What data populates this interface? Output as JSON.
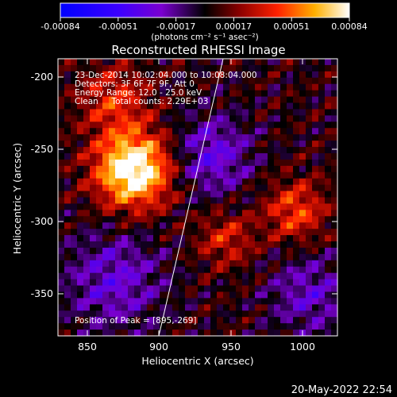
{
  "colorbar": {
    "ticks": [
      "-0.00084",
      "-0.00051",
      "-0.00017",
      "0.00017",
      "0.00051",
      "0.00084"
    ],
    "units": "(photons cm⁻² s⁻¹ asec⁻²)"
  },
  "title": "Reconstructed RHESSI Image",
  "annotations": {
    "time": "23-Dec-2014 10:02:04.000 to 10:08:04.000",
    "detectors": "Detectors: 3F 6F 7F 9F, Att 0",
    "energy": "Energy Range: 12.0 - 25.0 keV",
    "clean": "Clean     Total counts: 2.29E+03",
    "peak": "Position of Peak = [895,-269]"
  },
  "axes": {
    "xlabel": "Heliocentric X (arcsec)",
    "ylabel": "Heliocentric Y (arcsec)",
    "xticks": [
      "850",
      "900",
      "950",
      "1000"
    ],
    "yticks": [
      "-200",
      "-250",
      "-300",
      "-350"
    ],
    "xlim": [
      832,
      1025
    ],
    "ylim": [
      -382,
      -186
    ]
  },
  "timestamp": "20-May-2022 22:54"
}
